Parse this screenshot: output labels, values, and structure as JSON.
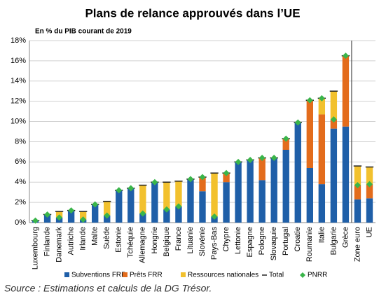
{
  "chart_data": {
    "type": "bar",
    "stacked": true,
    "title": "Plans de relance approuvés dans l’UE",
    "subtitle": "En % du PIB courant de 2019",
    "source": "Source : Estimations et calculs de la DG Trésor.",
    "categories": [
      "Luxembourg",
      "Finlande",
      "Danemark",
      "Autriche",
      "Irlande",
      "Malte",
      "Suède",
      "Estonie",
      "Tchéquie",
      "Allemagne",
      "Hongrie",
      "Belgique",
      "France",
      "Lituanie",
      "Slovénie",
      "Pays-Bas",
      "Chypre",
      "Lettonie",
      "Espagne",
      "Pologne",
      "Slovaquie",
      "Portugal",
      "Croatie",
      "Roumanie",
      "Italie",
      "Bulgarie",
      "Grèce",
      "Zone euro",
      "UE"
    ],
    "series": [
      {
        "name": "Subventions FRR",
        "type": "bar",
        "color": "#1f5fa8",
        "values": [
          0.2,
          0.8,
          0.5,
          1.2,
          0.3,
          1.8,
          0.7,
          3.2,
          3.4,
          0.9,
          4.0,
          1.3,
          1.6,
          4.3,
          3.1,
          0.6,
          4.0,
          6.0,
          6.2,
          4.2,
          6.4,
          7.2,
          9.9,
          5.4,
          3.8,
          9.3,
          9.5,
          2.3,
          2.4
        ]
      },
      {
        "name": "Prêts FRR",
        "type": "bar",
        "color": "#e36c1c",
        "values": [
          0,
          0,
          0,
          0,
          0,
          0,
          0,
          0,
          0,
          0,
          0,
          0,
          0,
          0,
          1.4,
          0,
          0.9,
          0,
          0,
          2.2,
          0,
          1.1,
          0,
          6.7,
          6.9,
          0.9,
          7.0,
          1.4,
          1.4
        ]
      },
      {
        "name": "Ressources nationales",
        "type": "bar",
        "color": "#f2c12e",
        "values": [
          0,
          0,
          0.6,
          0,
          0.8,
          0,
          1.4,
          0,
          0,
          2.8,
          0,
          2.7,
          2.5,
          0,
          0,
          4.3,
          0,
          0,
          0,
          0,
          0,
          0,
          0,
          0,
          1.6,
          2.8,
          0,
          1.9,
          1.7
        ]
      },
      {
        "name": "Total",
        "type": "tick",
        "color": "#222222",
        "values": [
          0.2,
          0.8,
          1.1,
          1.2,
          1.1,
          1.8,
          2.1,
          3.2,
          3.4,
          3.7,
          4.0,
          4.0,
          4.1,
          4.3,
          4.5,
          4.9,
          4.9,
          6.0,
          6.2,
          6.4,
          6.4,
          8.3,
          9.9,
          12.1,
          12.3,
          13.0,
          16.5,
          5.6,
          5.5
        ]
      },
      {
        "name": "PNRR",
        "type": "marker",
        "color": "#3ab54a",
        "values": [
          0.2,
          0.8,
          0.5,
          1.2,
          0.3,
          1.8,
          0.7,
          3.2,
          3.4,
          0.9,
          4.0,
          1.3,
          1.6,
          4.3,
          4.5,
          0.6,
          4.9,
          6.0,
          6.2,
          6.4,
          6.4,
          8.3,
          9.9,
          12.1,
          12.3,
          10.2,
          16.5,
          3.7,
          3.8
        ]
      }
    ],
    "ylim": [
      0,
      18
    ],
    "yticks": [
      {
        "value": 0,
        "label": "0%"
      },
      {
        "value": 2,
        "label": "2%"
      },
      {
        "value": 4,
        "label": "4%"
      },
      {
        "value": 6,
        "label": "6%"
      },
      {
        "value": 8,
        "label": "8%"
      },
      {
        "value": 10,
        "label": "10%"
      },
      {
        "value": 12,
        "label": "12%"
      },
      {
        "value": 14,
        "label": "14%"
      },
      {
        "value": 16,
        "label": "16%"
      },
      {
        "value": 18,
        "label": "18%"
      }
    ],
    "grid": true
  }
}
